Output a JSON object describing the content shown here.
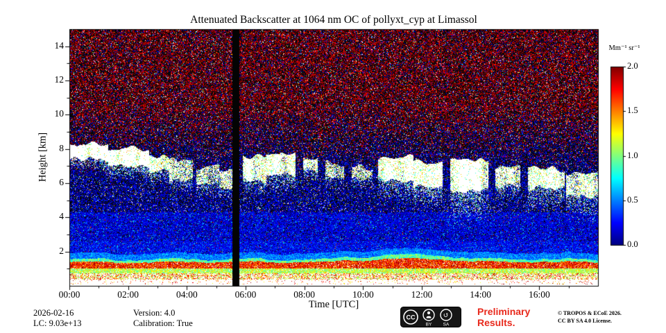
{
  "chart_data": {
    "type": "heatmap",
    "title": "Attenuated Backscatter at 1064 nm OC of pollyxt_cyp at Limassol",
    "xlabel": "Time [UTC]",
    "ylabel": "Height [km]",
    "x_ticks": [
      "00:00",
      "02:00",
      "04:00",
      "06:00",
      "08:00",
      "10:00",
      "12:00",
      "14:00",
      "16:00"
    ],
    "x_tick_hours": [
      0,
      2,
      4,
      6,
      8,
      10,
      12,
      14,
      16
    ],
    "x_range_hours": [
      0,
      18
    ],
    "y_ticks": [
      2,
      4,
      6,
      8,
      10,
      12,
      14
    ],
    "y_range_km": [
      0,
      15
    ],
    "colorbar": {
      "label": "Mm⁻¹ sr⁻¹",
      "tick_labels": [
        "0.0",
        "0.5",
        "1.0",
        "1.5",
        "2.0"
      ],
      "tick_values": [
        0,
        0.5,
        1,
        1.5,
        2
      ],
      "vmin": 0,
      "vmax": 2,
      "colormap": "jet",
      "over_color": "white"
    },
    "features": {
      "description": "Lidar attenuated backscatter quicklook: saturated white layer below ~0.4 km, strong orange/red aerosol band ~1.0-1.8 km, blue molecular speckle 2-9 km, dark-red-dominated noise above ~9 km, broken white cloud layers 5.3-8.3 km with virga, vertical black data gap ~05:33-05:47 UTC.",
      "data_gap_hours": [
        5.55,
        5.78
      ],
      "aerosol_band_top_km": 1.6,
      "cloud_columns_note": "[t_start_h, t_end_h, base_km, top_km, density, virga_depth_km]",
      "clouds": [
        [
          0,
          1.3,
          7.4,
          8.25,
          0.92,
          0.7
        ],
        [
          1.3,
          2.7,
          7.1,
          8.0,
          0.9,
          0.8
        ],
        [
          2.7,
          3.4,
          6.7,
          7.6,
          0.75,
          0.9
        ],
        [
          3.4,
          4.2,
          6.2,
          7.3,
          0.6,
          1.0
        ],
        [
          4.3,
          5.1,
          6.0,
          7.0,
          0.5,
          0.9
        ],
        [
          5.1,
          5.55,
          5.8,
          6.8,
          0.55,
          0.8
        ],
        [
          5.9,
          6.7,
          6.2,
          7.5,
          0.7,
          0.9
        ],
        [
          6.7,
          7.7,
          6.5,
          7.8,
          0.75,
          1.1
        ],
        [
          7.95,
          8.45,
          6.7,
          7.4,
          0.6,
          0.7
        ],
        [
          8.7,
          9.35,
          6.4,
          7.2,
          0.55,
          0.8
        ],
        [
          9.6,
          10.3,
          6.2,
          7.0,
          0.5,
          0.8
        ],
        [
          10.5,
          11.7,
          6.1,
          7.5,
          0.8,
          1.3
        ],
        [
          11.7,
          12.7,
          5.8,
          7.2,
          0.75,
          1.2
        ],
        [
          12.95,
          14.25,
          5.6,
          7.4,
          0.85,
          2.0
        ],
        [
          14.5,
          15.35,
          5.9,
          6.9,
          0.6,
          1.0
        ],
        [
          15.6,
          16.85,
          5.7,
          6.9,
          0.75,
          1.4
        ],
        [
          16.9,
          18,
          5.3,
          6.6,
          0.7,
          1.5
        ]
      ]
    }
  },
  "footer": {
    "date": "2026-02-16",
    "lidar_constant": "LC: 9.03e+13",
    "version": "Version: 4.0",
    "calibration": "Calibration: True"
  },
  "license_badge": {
    "cc": "CC",
    "by": "BY",
    "sa": "SA"
  },
  "notices": {
    "preliminary_line1": "Preliminary",
    "preliminary_line2": "Results.",
    "copyright_line1": "© TROPOS & ECoE 2026.",
    "copyright_line2": "CC BY SA 4.0 License."
  }
}
